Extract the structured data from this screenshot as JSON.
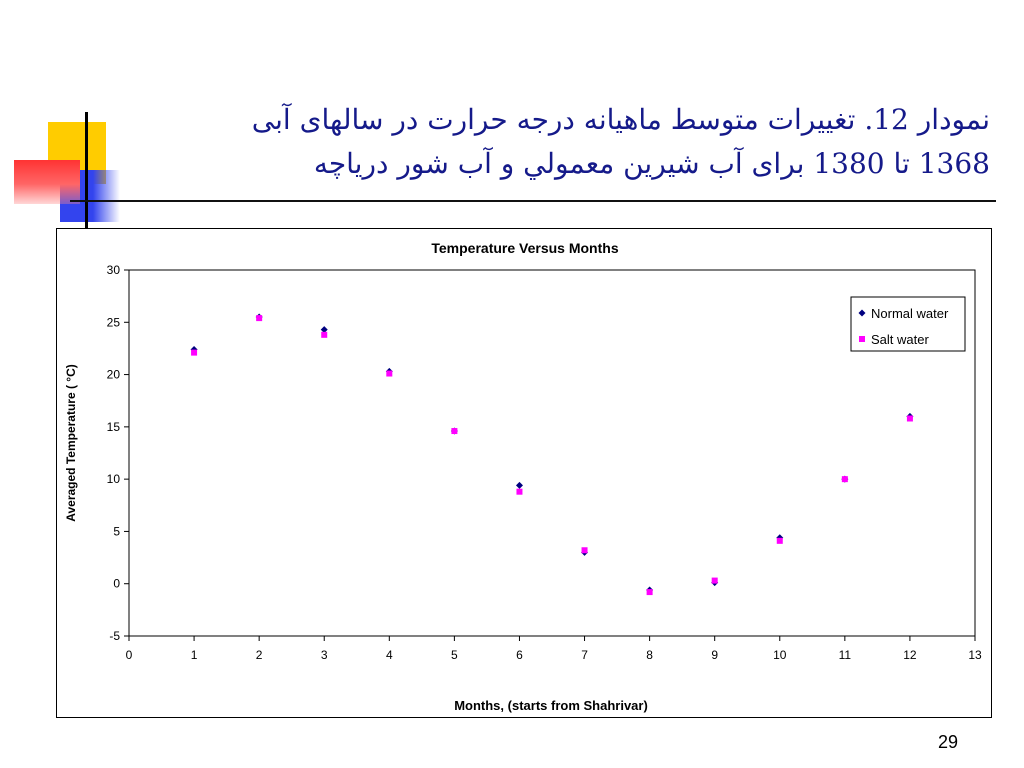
{
  "slide": {
    "title_line1": "نمودار 12.  تغییرات متوسط ماهیانه درجه حرارت در سالهای آبی",
    "title_line2": "1368 تا 1380 برای آب شیرین معمولي و آب شور درياچه",
    "page_number": "29"
  },
  "colors": {
    "title": "#151a8a",
    "normal_water": "#000080",
    "salt_water": "#ff00ff"
  },
  "chart_data": {
    "type": "scatter",
    "title": "Temperature Versus Months",
    "xlabel": "Months, (starts from Shahrivar)",
    "ylabel": "Averaged Temperature  (  °C)",
    "xlim": [
      0,
      13
    ],
    "ylim": [
      -5,
      30
    ],
    "x_ticks": [
      0,
      1,
      2,
      3,
      4,
      5,
      6,
      7,
      8,
      9,
      10,
      11,
      12,
      13
    ],
    "y_ticks": [
      -5,
      0,
      5,
      10,
      15,
      20,
      25,
      30
    ],
    "grid": false,
    "legend_position": "top-right",
    "series": [
      {
        "name": "Normal water",
        "marker": "diamond",
        "color": "#000080",
        "x": [
          1,
          2,
          3,
          4,
          5,
          6,
          7,
          8,
          9,
          10,
          11,
          12
        ],
        "y": [
          22.4,
          25.5,
          24.3,
          20.3,
          14.6,
          9.4,
          3.0,
          -0.6,
          0.1,
          4.4,
          10.0,
          16.0
        ]
      },
      {
        "name": "Salt water",
        "marker": "square",
        "color": "#ff00ff",
        "x": [
          1,
          2,
          3,
          4,
          5,
          6,
          7,
          8,
          9,
          10,
          11,
          12
        ],
        "y": [
          22.1,
          25.4,
          23.8,
          20.1,
          14.6,
          8.8,
          3.2,
          -0.8,
          0.3,
          4.1,
          10.0,
          15.8
        ]
      }
    ]
  }
}
